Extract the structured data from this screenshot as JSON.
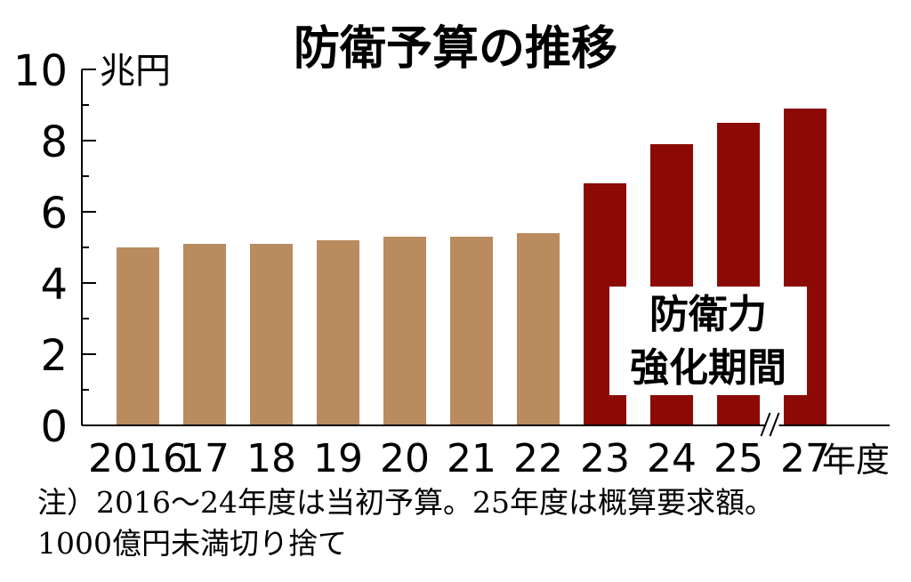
{
  "chart_data": {
    "type": "bar",
    "title": "防衛予算の推移",
    "y_unit": "兆円",
    "x_unit": "年度",
    "ylim": [
      0,
      10
    ],
    "y_ticks": [
      "0",
      "2",
      "4",
      "6",
      "8",
      "10"
    ],
    "categories": [
      "2016",
      "17",
      "18",
      "19",
      "20",
      "21",
      "22",
      "23",
      "24",
      "25",
      "27"
    ],
    "values": [
      5.0,
      5.1,
      5.1,
      5.2,
      5.3,
      5.3,
      5.4,
      6.8,
      7.9,
      8.5,
      8.9
    ],
    "highlight_from_index": 7,
    "axis_break_after": "25",
    "annotation": [
      "防衛力",
      "強化期間"
    ],
    "colors": {
      "normal": "#b98b5f",
      "highlight": "#8b0a05",
      "text": "#000000"
    }
  },
  "notes": [
    "注）2016～24年度は当初予算。25年度は概算要求額。",
    "1000億円未満切り捨て"
  ]
}
